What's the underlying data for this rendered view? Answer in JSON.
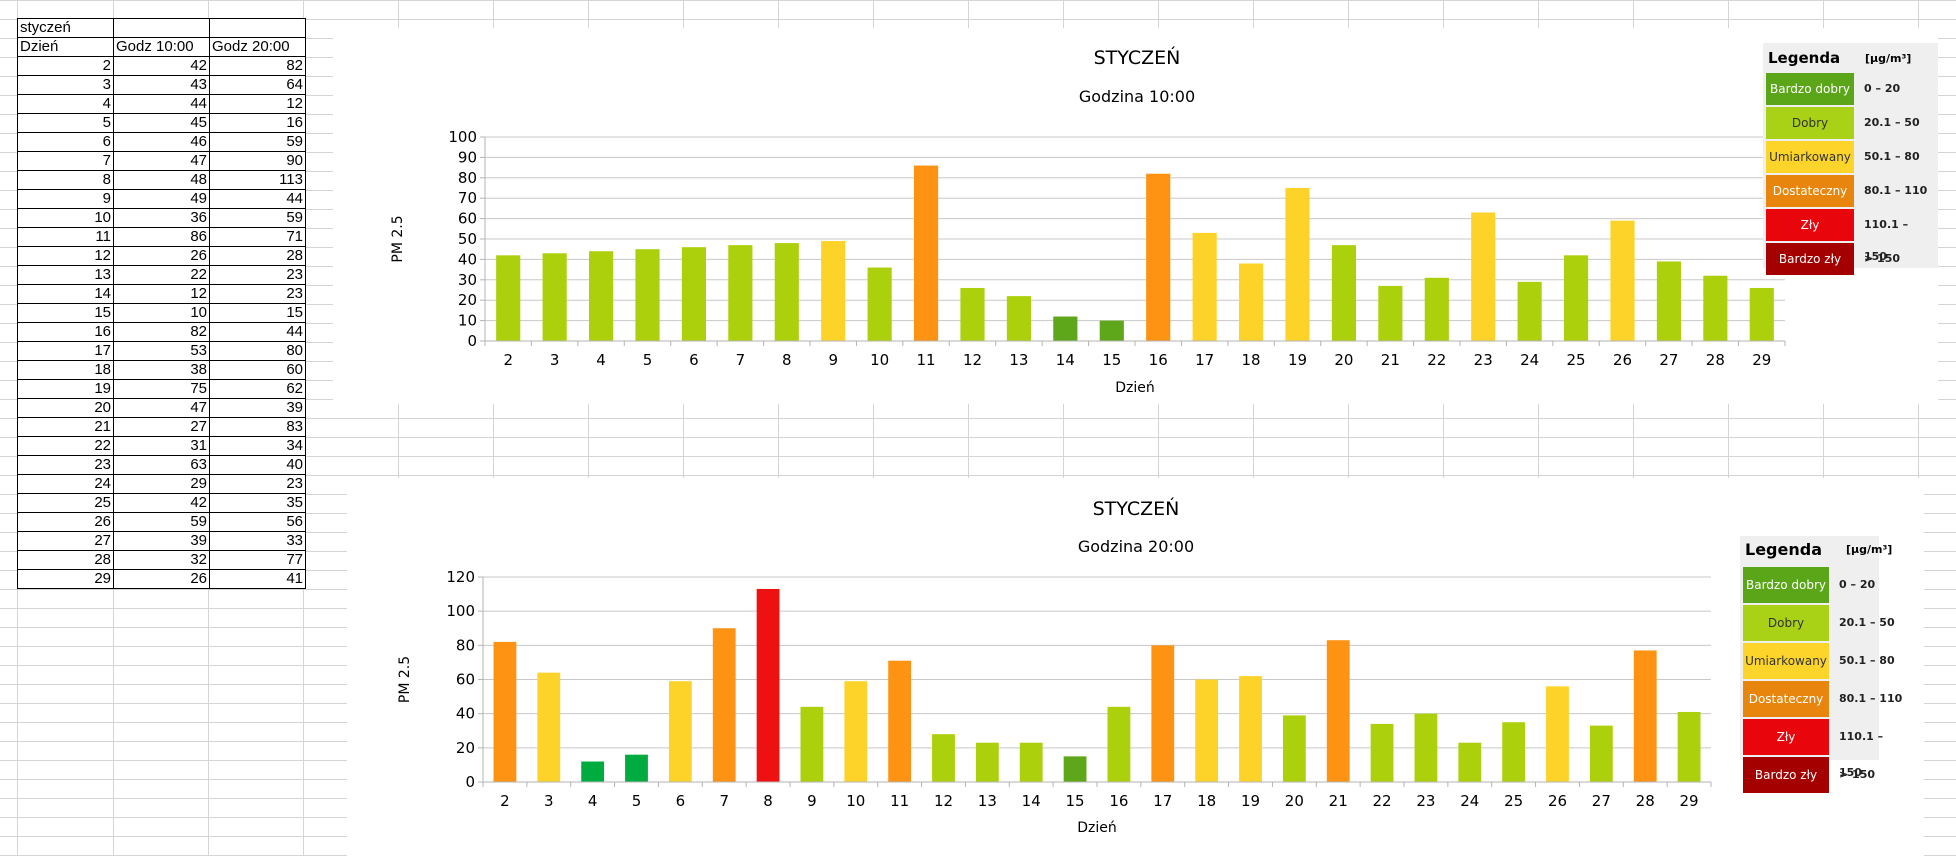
{
  "sheet": {
    "month_label": "styczeń",
    "headers": [
      "Dzień",
      "Godz 10:00",
      "Godz 20:00"
    ],
    "rows": [
      [
        2,
        42,
        82
      ],
      [
        3,
        43,
        64
      ],
      [
        4,
        44,
        12
      ],
      [
        5,
        45,
        16
      ],
      [
        6,
        46,
        59
      ],
      [
        7,
        47,
        90
      ],
      [
        8,
        48,
        113
      ],
      [
        9,
        49,
        44
      ],
      [
        10,
        36,
        59
      ],
      [
        11,
        86,
        71
      ],
      [
        12,
        26,
        28
      ],
      [
        13,
        22,
        23
      ],
      [
        14,
        12,
        23
      ],
      [
        15,
        10,
        15
      ],
      [
        16,
        82,
        44
      ],
      [
        17,
        53,
        80
      ],
      [
        18,
        38,
        60
      ],
      [
        19,
        75,
        62
      ],
      [
        20,
        47,
        39
      ],
      [
        21,
        27,
        83
      ],
      [
        22,
        31,
        34
      ],
      [
        23,
        63,
        40
      ],
      [
        24,
        29,
        23
      ],
      [
        25,
        42,
        35
      ],
      [
        26,
        59,
        56
      ],
      [
        27,
        39,
        33
      ],
      [
        28,
        32,
        77
      ],
      [
        29,
        26,
        41
      ]
    ]
  },
  "legend": {
    "title": "Legenda",
    "unit": "[µg/m³]",
    "items": [
      {
        "label": "Bardzo dobry",
        "range": "0 – 20",
        "color": "#5aa618"
      },
      {
        "label": "Dobry",
        "range": "20.1 – 50",
        "color": "#a9d116",
        "text_color": "#333333"
      },
      {
        "label": "Umiarkowany",
        "range": "50.1 – 80",
        "color": "#fdd52a",
        "text_color": "#333333"
      },
      {
        "label": "Dostateczny",
        "range": "80.1 – 110",
        "color": "#e8850c"
      },
      {
        "label": "Zły",
        "range": "110.1 – 150",
        "color": "#e8050c"
      },
      {
        "label": "Bardzo zły",
        "range": "> 150",
        "color": "#a50000"
      }
    ]
  },
  "chart_data": [
    {
      "type": "bar",
      "title": "STYCZEŃ",
      "subtitle": "Godzina 10:00",
      "xlabel": "Dzień",
      "ylabel": "PM 2.5",
      "ylim": [
        0,
        100
      ],
      "ytick_step": 10,
      "grid": true,
      "categories": [
        "2",
        "3",
        "4",
        "5",
        "6",
        "7",
        "8",
        "9",
        "10",
        "11",
        "12",
        "13",
        "14",
        "15",
        "16",
        "17",
        "18",
        "19",
        "20",
        "21",
        "22",
        "23",
        "24",
        "25",
        "26",
        "27",
        "28",
        "29"
      ],
      "values": [
        42,
        43,
        44,
        45,
        46,
        47,
        48,
        49,
        36,
        86,
        26,
        22,
        12,
        10,
        82,
        53,
        38,
        75,
        47,
        27,
        31,
        63,
        29,
        42,
        59,
        39,
        32,
        26
      ],
      "colors": [
        "#acd00b",
        "#acd00b",
        "#acd00b",
        "#acd00b",
        "#acd00b",
        "#acd00b",
        "#acd00b",
        "#fdd329",
        "#acd00b",
        "#fe9212",
        "#acd00b",
        "#acd00b",
        "#5ea61a",
        "#5ea61a",
        "#fe9212",
        "#fdd329",
        "#fdd329",
        "#fdd329",
        "#acd00b",
        "#acd00b",
        "#acd00b",
        "#fdd329",
        "#acd00b",
        "#acd00b",
        "#fdd329",
        "#acd00b",
        "#acd00b",
        "#acd00b"
      ]
    },
    {
      "type": "bar",
      "title": "STYCZEŃ",
      "subtitle": "Godzina 20:00",
      "xlabel": "Dzień",
      "ylabel": "PM 2.5",
      "ylim": [
        0,
        120
      ],
      "ytick_step": 20,
      "grid": true,
      "categories": [
        "2",
        "3",
        "4",
        "5",
        "6",
        "7",
        "8",
        "9",
        "10",
        "11",
        "12",
        "13",
        "14",
        "15",
        "16",
        "17",
        "18",
        "19",
        "20",
        "21",
        "22",
        "23",
        "24",
        "25",
        "26",
        "27",
        "28",
        "29"
      ],
      "values": [
        82,
        64,
        12,
        16,
        59,
        90,
        113,
        44,
        59,
        71,
        28,
        23,
        23,
        15,
        44,
        80,
        60,
        62,
        39,
        83,
        34,
        40,
        23,
        35,
        56,
        33,
        77,
        41
      ],
      "colors": [
        "#fe9212",
        "#fdd329",
        "#00ac3f",
        "#00ac3f",
        "#fdd329",
        "#fe9212",
        "#ee1111",
        "#acd00b",
        "#fdd329",
        "#fe9212",
        "#acd00b",
        "#acd00b",
        "#acd00b",
        "#5ea61a",
        "#acd00b",
        "#fe9212",
        "#fdd329",
        "#fdd329",
        "#acd00b",
        "#fe9212",
        "#acd00b",
        "#acd00b",
        "#acd00b",
        "#acd00b",
        "#fdd329",
        "#acd00b",
        "#fe9212",
        "#acd00b"
      ]
    }
  ]
}
